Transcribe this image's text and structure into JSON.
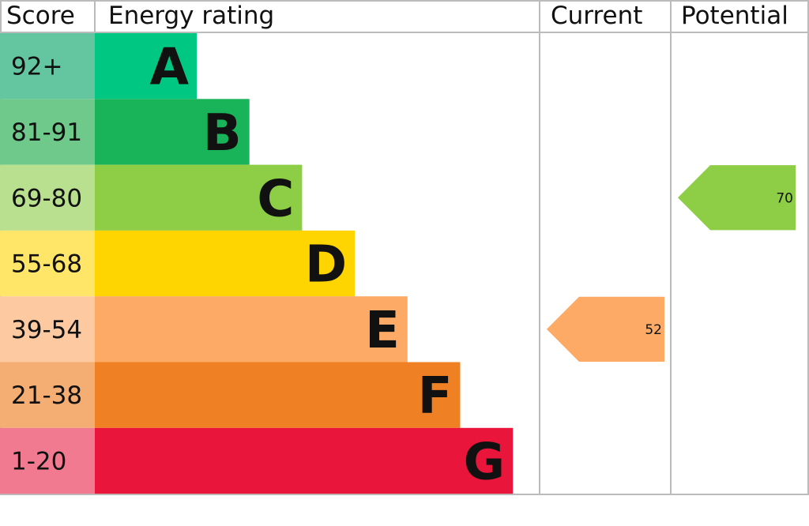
{
  "chart_data": {
    "type": "bar",
    "headers": {
      "score": "Score",
      "rating": "Energy rating",
      "current": "Current",
      "potential": "Potential"
    },
    "bands": [
      {
        "score": "92+",
        "letter": "A",
        "color": "#00c781",
        "score_color": "#63c6a1"
      },
      {
        "score": "81-91",
        "letter": "B",
        "color": "#19b459",
        "score_color": "#6fc98b"
      },
      {
        "score": "69-80",
        "letter": "C",
        "color": "#8dce46",
        "score_color": "#b9e08e"
      },
      {
        "score": "55-68",
        "letter": "D",
        "color": "#ffd500",
        "score_color": "#ffe668"
      },
      {
        "score": "39-54",
        "letter": "E",
        "color": "#fcaa65",
        "score_color": "#fdc9a0"
      },
      {
        "score": "21-38",
        "letter": "F",
        "color": "#ef8023",
        "score_color": "#f4ad72"
      },
      {
        "score": "1-20",
        "letter": "G",
        "color": "#e9153b",
        "score_color": "#f27a90"
      }
    ],
    "current": {
      "value": "52",
      "band": "E",
      "color": "#fcaa65"
    },
    "potential": {
      "value": "70",
      "band": "C",
      "color": "#8dce46"
    }
  }
}
